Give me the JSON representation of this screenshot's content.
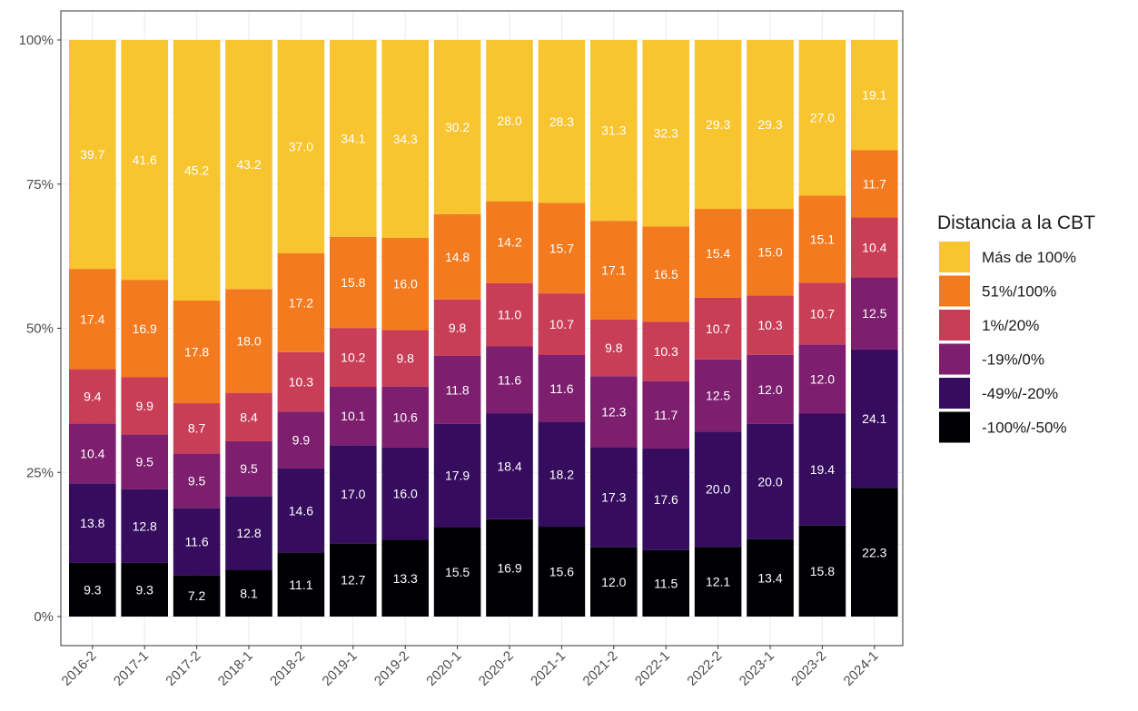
{
  "chart_data": {
    "type": "bar",
    "stacked": true,
    "percent_stacked": true,
    "title": "",
    "xlabel": "",
    "ylabel": "",
    "ylim": [
      0,
      100
    ],
    "y_ticks": [
      "0%",
      "25%",
      "50%",
      "75%",
      "100%"
    ],
    "grid": true,
    "legend_position": "right",
    "legend_title": "Distancia a la CBT",
    "categories": [
      "2016-2",
      "2017-1",
      "2017-2",
      "2018-1",
      "2018-2",
      "2019-1",
      "2019-2",
      "2020-1",
      "2020-2",
      "2021-1",
      "2021-2",
      "2022-1",
      "2022-2",
      "2023-1",
      "2023-2",
      "2024-1"
    ],
    "series": [
      {
        "name": "-100%/-50%",
        "color": "#000004",
        "values": [
          9.3,
          9.3,
          7.2,
          8.1,
          11.1,
          12.7,
          13.3,
          15.5,
          16.9,
          15.6,
          12.0,
          11.5,
          12.1,
          13.4,
          15.8,
          22.3
        ]
      },
      {
        "name": "-49%/-20%",
        "color": "#350c5e",
        "values": [
          13.8,
          12.8,
          11.6,
          12.8,
          14.6,
          17.0,
          16.0,
          17.9,
          18.4,
          18.2,
          17.3,
          17.6,
          20.0,
          20.0,
          19.4,
          24.1
        ]
      },
      {
        "name": "-19%/0%",
        "color": "#7e1e6e",
        "values": [
          10.4,
          9.5,
          9.5,
          9.5,
          9.9,
          10.1,
          10.6,
          11.8,
          11.6,
          11.6,
          12.3,
          11.7,
          12.5,
          12.0,
          12.0,
          12.5
        ]
      },
      {
        "name": "1%/20%",
        "color": "#c93e57",
        "values": [
          9.4,
          9.9,
          8.7,
          8.4,
          10.3,
          10.2,
          9.8,
          9.8,
          11.0,
          10.7,
          9.8,
          10.3,
          10.7,
          10.3,
          10.7,
          10.4
        ]
      },
      {
        "name": "51%/100%",
        "color": "#f37a1e",
        "values": [
          17.4,
          16.9,
          17.8,
          18.0,
          17.2,
          15.8,
          16.0,
          14.8,
          14.2,
          15.7,
          17.1,
          16.5,
          15.4,
          15.0,
          15.1,
          11.7
        ]
      },
      {
        "name": "Más de 100%",
        "color": "#f8c531",
        "values": [
          39.7,
          41.6,
          45.2,
          43.2,
          37.0,
          34.1,
          34.3,
          30.2,
          28.0,
          28.3,
          31.3,
          32.3,
          29.3,
          29.3,
          27.0,
          19.1
        ]
      }
    ],
    "segment_label_colors": {
      "Más de 100%": "#ffffff"
    }
  }
}
